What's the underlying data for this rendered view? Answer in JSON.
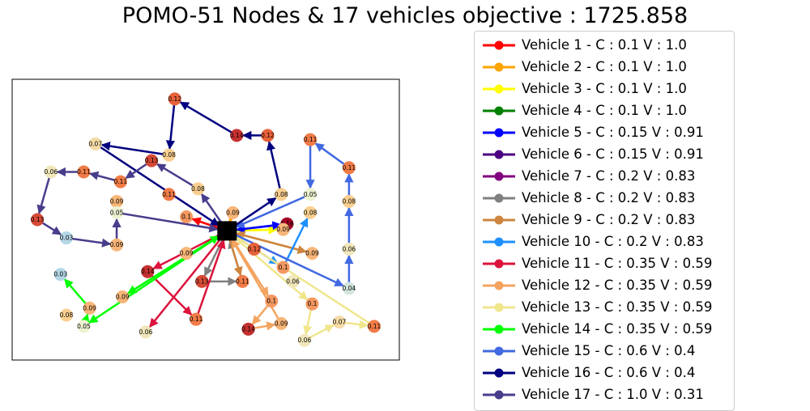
{
  "title": "POMO-51 Nodes & 17 vehicles objective : 1725.858",
  "chart_data": {
    "type": "network",
    "title": "POMO-51 Nodes & 17 vehicles objective : 1725.858",
    "xlim": [
      0,
      1
    ],
    "ylim": [
      0,
      1
    ],
    "depot": {
      "x": 0.555,
      "y": 0.46
    },
    "legend_placement": "right, outside plot",
    "nodes": [
      {
        "id": "n1",
        "label": "0.12",
        "x": 0.42,
        "y": 0.93
      },
      {
        "id": "n2",
        "label": "0.08",
        "x": 0.405,
        "y": 0.73
      },
      {
        "id": "n3",
        "label": "0.07",
        "x": 0.215,
        "y": 0.77
      },
      {
        "id": "n4",
        "label": "0.13",
        "x": 0.36,
        "y": 0.71
      },
      {
        "id": "n5",
        "label": "0.08",
        "x": 0.48,
        "y": 0.61
      },
      {
        "id": "n6",
        "label": "0.14",
        "x": 0.58,
        "y": 0.8
      },
      {
        "id": "n7",
        "label": "0.12",
        "x": 0.66,
        "y": 0.8
      },
      {
        "id": "n8",
        "label": "0.08",
        "x": 0.695,
        "y": 0.59
      },
      {
        "id": "n9",
        "label": "0.05",
        "x": 0.77,
        "y": 0.59
      },
      {
        "id": "n10",
        "label": "0.08",
        "x": 0.77,
        "y": 0.525
      },
      {
        "id": "n11",
        "label": "0.11",
        "x": 0.77,
        "y": 0.785
      },
      {
        "id": "n12",
        "label": "0.11",
        "x": 0.87,
        "y": 0.685
      },
      {
        "id": "n13",
        "label": "0.08",
        "x": 0.87,
        "y": 0.565
      },
      {
        "id": "n14",
        "label": "0.06",
        "x": 0.87,
        "y": 0.395
      },
      {
        "id": "n15",
        "label": "0.04",
        "x": 0.87,
        "y": 0.255
      },
      {
        "id": "n16",
        "label": "0.06",
        "x": 0.1,
        "y": 0.67
      },
      {
        "id": "n17",
        "label": "0.11",
        "x": 0.185,
        "y": 0.67
      },
      {
        "id": "n18",
        "label": "0.11",
        "x": 0.28,
        "y": 0.635
      },
      {
        "id": "n19",
        "label": "0.11",
        "x": 0.405,
        "y": 0.59
      },
      {
        "id": "n20",
        "label": "0.09",
        "x": 0.27,
        "y": 0.565
      },
      {
        "id": "n21",
        "label": "0.05",
        "x": 0.27,
        "y": 0.525
      },
      {
        "id": "n22",
        "label": "0.13",
        "x": 0.065,
        "y": 0.5
      },
      {
        "id": "n23",
        "label": "0.03",
        "x": 0.14,
        "y": 0.435
      },
      {
        "id": "n24",
        "label": "0.09",
        "x": 0.27,
        "y": 0.41
      },
      {
        "id": "n25",
        "label": "0.1",
        "x": 0.45,
        "y": 0.51
      },
      {
        "id": "n26",
        "label": "0.09",
        "x": 0.57,
        "y": 0.525
      },
      {
        "id": "n27",
        "label": "0.16",
        "x": 0.71,
        "y": 0.485
      },
      {
        "id": "n28",
        "label": "0.09",
        "x": 0.7,
        "y": 0.465
      },
      {
        "id": "n29",
        "label": "0.12",
        "x": 0.625,
        "y": 0.395
      },
      {
        "id": "n30",
        "label": "0.09",
        "x": 0.775,
        "y": 0.38
      },
      {
        "id": "n31",
        "label": "0.1",
        "x": 0.7,
        "y": 0.33
      },
      {
        "id": "n32",
        "label": "0.09",
        "x": 0.45,
        "y": 0.38
      },
      {
        "id": "n33",
        "label": "0.14",
        "x": 0.35,
        "y": 0.315
      },
      {
        "id": "n34",
        "label": "0.13",
        "x": 0.49,
        "y": 0.28
      },
      {
        "id": "n35",
        "label": "0.11",
        "x": 0.595,
        "y": 0.28
      },
      {
        "id": "n36",
        "label": "0.06",
        "x": 0.725,
        "y": 0.28
      },
      {
        "id": "n37",
        "label": "0.03",
        "x": 0.125,
        "y": 0.305
      },
      {
        "id": "n38",
        "label": "0.09",
        "x": 0.2,
        "y": 0.185
      },
      {
        "id": "n39",
        "label": "0.08",
        "x": 0.14,
        "y": 0.16
      },
      {
        "id": "n40",
        "label": "0.05",
        "x": 0.185,
        "y": 0.12
      },
      {
        "id": "n41",
        "label": "0.09",
        "x": 0.285,
        "y": 0.225
      },
      {
        "id": "n42",
        "label": "0.11",
        "x": 0.475,
        "y": 0.145
      },
      {
        "id": "n43",
        "label": "0.06",
        "x": 0.345,
        "y": 0.1
      },
      {
        "id": "n44",
        "label": "0.1",
        "x": 0.67,
        "y": 0.21
      },
      {
        "id": "n45",
        "label": "0.14",
        "x": 0.61,
        "y": 0.11
      },
      {
        "id": "n46",
        "label": "0.09",
        "x": 0.695,
        "y": 0.13
      },
      {
        "id": "n47",
        "label": "0.1",
        "x": 0.775,
        "y": 0.2
      },
      {
        "id": "n48",
        "label": "0.06",
        "x": 0.755,
        "y": 0.07
      },
      {
        "id": "n49",
        "label": "0.07",
        "x": 0.845,
        "y": 0.135
      },
      {
        "id": "n50",
        "label": "0.11",
        "x": 0.935,
        "y": 0.12
      }
    ],
    "series": [
      {
        "name": "Vehicle 1 - C : 0.1 V : 1.0",
        "color": "#ff0000",
        "route": [
          "depot",
          "n25",
          "depot"
        ]
      },
      {
        "name": "Vehicle 2 - C : 0.1 V : 1.0",
        "color": "#ffa500",
        "route": [
          "depot",
          "n26",
          "depot"
        ]
      },
      {
        "name": "Vehicle 3 - C : 0.1 V : 1.0",
        "color": "#ffff00",
        "route": [
          "depot",
          "n28",
          "depot"
        ]
      },
      {
        "name": "Vehicle 4 - C : 0.1 V : 1.0",
        "color": "#008000",
        "route": []
      },
      {
        "name": "Vehicle 5 - C : 0.15 V : 0.91",
        "color": "#0000ff",
        "route": [
          "depot",
          "n27",
          "depot"
        ]
      },
      {
        "name": "Vehicle 6 - C : 0.15 V : 0.91",
        "color": "#4b0082",
        "route": []
      },
      {
        "name": "Vehicle 7 - C : 0.2 V : 0.83",
        "color": "#800080",
        "route": []
      },
      {
        "name": "Vehicle 8 - C : 0.2 V : 0.83",
        "color": "#808080",
        "route": [
          "depot",
          "n34",
          "n35",
          "depot"
        ]
      },
      {
        "name": "Vehicle 9 - C : 0.2 V : 0.83",
        "color": "#cd853f",
        "route": [
          "depot",
          "n30",
          "depot",
          "n35"
        ]
      },
      {
        "name": "Vehicle 10 - C : 0.2 V : 0.83",
        "color": "#1e90ff",
        "route": [
          "depot",
          "n31",
          "n10"
        ]
      },
      {
        "name": "Vehicle 11 - C : 0.35 V : 0.59",
        "color": "#dc143c",
        "route": [
          "depot",
          "n33",
          "n42",
          "depot",
          "n43"
        ]
      },
      {
        "name": "Vehicle 12 - C : 0.35 V : 0.59",
        "color": "#f4a460",
        "route": [
          "depot",
          "n44",
          "n45",
          "n46",
          "depot"
        ]
      },
      {
        "name": "Vehicle 13 - C : 0.35 V : 0.59",
        "color": "#f0e68c",
        "route": [
          "depot",
          "n47",
          "n48",
          "n49",
          "n50",
          "depot"
        ]
      },
      {
        "name": "Vehicle 14 - C : 0.35 V : 0.59",
        "color": "#00ff00",
        "route": [
          "depot",
          "n41",
          "depot",
          "n40",
          "n38",
          "n37"
        ]
      },
      {
        "name": "Vehicle 15 - C : 0.6 V : 0.4",
        "color": "#4169e1",
        "route": [
          "depot",
          "n15",
          "n14",
          "n13",
          "n12",
          "n11",
          "n9",
          "depot"
        ]
      },
      {
        "name": "Vehicle 16 - C : 0.6 V : 0.4",
        "color": "#000080",
        "route": [
          "depot",
          "n8",
          "n7",
          "n6",
          "n1",
          "n2",
          "n3",
          "depot"
        ]
      },
      {
        "name": "Vehicle 17 - C : 1.0 V : 0.31",
        "color": "#483d8b",
        "route": [
          "depot",
          "n5",
          "n4",
          "n18",
          "n17",
          "n16",
          "n22",
          "n23",
          "n24",
          "n21",
          "depot"
        ]
      }
    ]
  }
}
